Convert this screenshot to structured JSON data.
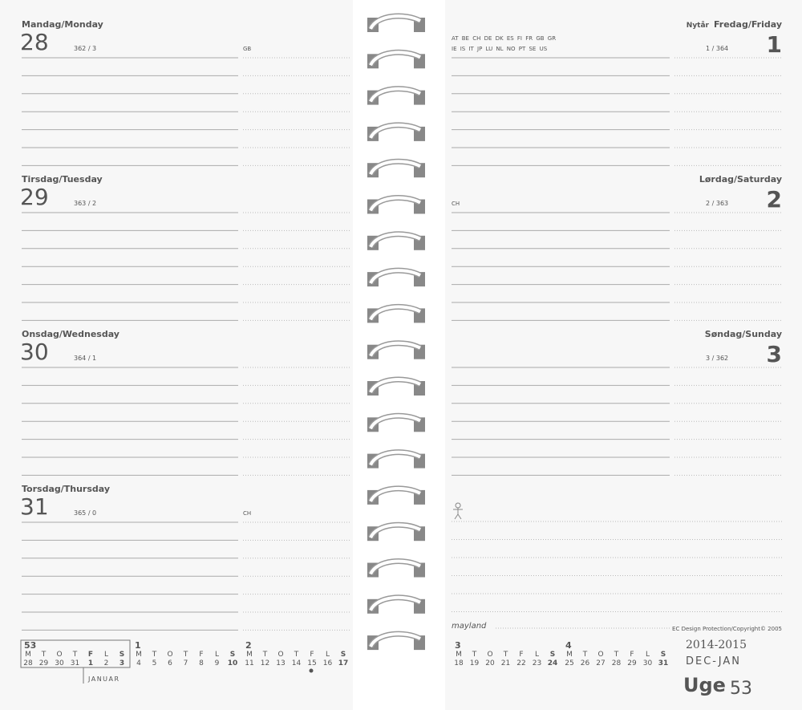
{
  "left_page": {
    "days": [
      {
        "name": "Mandag/Monday",
        "date": "28",
        "count": "362 / 3",
        "holiday_codes": "GB"
      },
      {
        "name": "Tirsdag/Tuesday",
        "date": "29",
        "count": "363 / 2"
      },
      {
        "name": "Onsdag/Wednesday",
        "date": "30",
        "count": "364 / 1"
      },
      {
        "name": "Torsdag/Thursday",
        "date": "31",
        "count": "365 / 0",
        "holiday_codes": "CH"
      }
    ],
    "weeks": [
      {
        "week": "53",
        "letters": [
          "M",
          "T",
          "O",
          "T",
          "F",
          "L",
          "S"
        ],
        "dates": [
          "28",
          "29",
          "30",
          "31",
          "1",
          "2",
          "3"
        ],
        "red": [
          false,
          false,
          false,
          false,
          true,
          false,
          true
        ]
      },
      {
        "week": "1",
        "letters": [
          "M",
          "T",
          "O",
          "T",
          "F",
          "L",
          "S"
        ],
        "dates": [
          "4",
          "5",
          "6",
          "7",
          "8",
          "9",
          "10"
        ],
        "red": [
          false,
          false,
          false,
          false,
          false,
          false,
          true
        ]
      },
      {
        "week": "2",
        "letters": [
          "M",
          "T",
          "O",
          "T",
          "F",
          "L",
          "S"
        ],
        "dates": [
          "11",
          "12",
          "13",
          "14",
          "15",
          "16",
          "17"
        ],
        "red": [
          false,
          false,
          false,
          false,
          false,
          false,
          true
        ]
      }
    ],
    "month_label": "JANUAR"
  },
  "right_page": {
    "days": [
      {
        "name": "Fredag/Friday",
        "date": "1",
        "count": "1 / 364",
        "holiday_name": "Nytår",
        "flags": [
          "AT BE CH DE DK ES FI FR GB GR",
          "IE IS IT JP LU NL NO PT SE US"
        ],
        "red": true
      },
      {
        "name": "Lørdag/Saturday",
        "date": "2",
        "count": "2 / 363",
        "flags": [
          "CH"
        ],
        "red": false
      },
      {
        "name": "Søndag/Sunday",
        "date": "3",
        "count": "3 / 362",
        "red": true
      }
    ],
    "weeks": [
      {
        "week": "3",
        "letters": [
          "M",
          "T",
          "O",
          "T",
          "F",
          "L",
          "S"
        ],
        "dates": [
          "18",
          "19",
          "20",
          "21",
          "22",
          "23",
          "24"
        ],
        "red": [
          false,
          false,
          false,
          false,
          false,
          false,
          true
        ]
      },
      {
        "week": "4",
        "letters": [
          "M",
          "T",
          "O",
          "T",
          "F",
          "L",
          "S"
        ],
        "dates": [
          "25",
          "26",
          "27",
          "28",
          "29",
          "30",
          "31"
        ],
        "red": [
          false,
          false,
          false,
          false,
          false,
          false,
          true
        ]
      }
    ],
    "brand": "mayland",
    "copyright": "EC Design Protection/Copyright© 2005",
    "years": "2014-2015",
    "months": "DEC-JAN",
    "week_word": "Uge",
    "week_number": "53"
  }
}
